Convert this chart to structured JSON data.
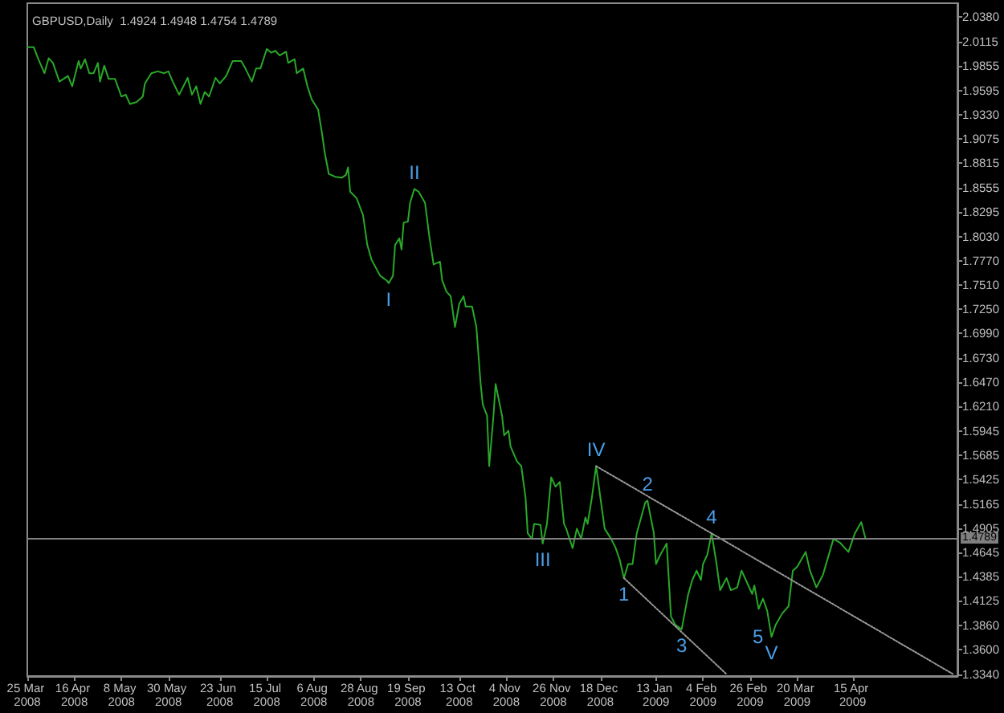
{
  "chart_data": {
    "type": "line",
    "title": "GBPUSD,Daily  1.4924 1.4948 1.4754 1.4789",
    "series": [
      {
        "color": "#29a829",
        "x": [
          "2008-03-25",
          "2008-03-28",
          "2008-03-30",
          "2008-04-02",
          "2008-04-04",
          "2008-04-06",
          "2008-04-09",
          "2008-04-11",
          "2008-04-13",
          "2008-04-15",
          "2008-04-18",
          "2008-04-19",
          "2008-04-21",
          "2008-04-23",
          "2008-04-25",
          "2008-04-27",
          "2008-04-28",
          "2008-04-30",
          "2008-05-02",
          "2008-05-05",
          "2008-05-08",
          "2008-05-10",
          "2008-05-12",
          "2008-05-15",
          "2008-05-18",
          "2008-05-19",
          "2008-05-22",
          "2008-05-25",
          "2008-05-28",
          "2008-05-30",
          "2008-06-01",
          "2008-06-04",
          "2008-06-08",
          "2008-06-10",
          "2008-06-12",
          "2008-06-14",
          "2008-06-16",
          "2008-06-18",
          "2008-06-21",
          "2008-06-23",
          "2008-06-26",
          "2008-06-29",
          "2008-07-03",
          "2008-07-05",
          "2008-07-08",
          "2008-07-10",
          "2008-07-12",
          "2008-07-15",
          "2008-07-17",
          "2008-07-19",
          "2008-07-21",
          "2008-07-24",
          "2008-07-25",
          "2008-07-28",
          "2008-07-29",
          "2008-08-01",
          "2008-08-03",
          "2008-08-05",
          "2008-08-08",
          "2008-08-10",
          "2008-08-11",
          "2008-08-13",
          "2008-08-16",
          "2008-08-19",
          "2008-08-21",
          "2008-08-22",
          "2008-08-23",
          "2008-08-26",
          "2008-08-29",
          "2008-08-31",
          "2008-09-02",
          "2008-09-06",
          "2008-09-09",
          "2008-09-10",
          "2008-09-12",
          "2008-09-13",
          "2008-09-15",
          "2008-09-16",
          "2008-09-17",
          "2008-09-19",
          "2008-09-20",
          "2008-09-22",
          "2008-09-24",
          "2008-09-27",
          "2008-09-29",
          "2008-10-01",
          "2008-10-04",
          "2008-10-05",
          "2008-10-07",
          "2008-10-09",
          "2008-10-11",
          "2008-10-13",
          "2008-10-15",
          "2008-10-16",
          "2008-10-19",
          "2008-10-21",
          "2008-10-23",
          "2008-10-24",
          "2008-10-26",
          "2008-10-27",
          "2008-10-29",
          "2008-10-30",
          "2008-11-02",
          "2008-11-03",
          "2008-11-05",
          "2008-11-06",
          "2008-11-09",
          "2008-11-11",
          "2008-11-13",
          "2008-11-14",
          "2008-11-16",
          "2008-11-17",
          "2008-11-20",
          "2008-11-21",
          "2008-11-23",
          "2008-11-25",
          "2008-11-27",
          "2008-11-29",
          "2008-12-01",
          "2008-12-02",
          "2008-12-05",
          "2008-12-07",
          "2008-12-09",
          "2008-12-11",
          "2008-12-12",
          "2008-12-14",
          "2008-12-16",
          "2008-12-18",
          "2008-12-20",
          "2008-12-23",
          "2008-12-25",
          "2008-12-27",
          "2008-12-29",
          "2008-12-31",
          "2009-01-02",
          "2009-01-04",
          "2009-01-08",
          "2009-01-09",
          "2009-01-12",
          "2009-01-13",
          "2009-01-15",
          "2009-01-18",
          "2009-01-20",
          "2009-01-22",
          "2009-01-25",
          "2009-01-28",
          "2009-01-30",
          "2009-02-01",
          "2009-02-03",
          "2009-02-04",
          "2009-02-06",
          "2009-02-08",
          "2009-02-10",
          "2009-02-12",
          "2009-02-15",
          "2009-02-17",
          "2009-02-20",
          "2009-02-22",
          "2009-02-24",
          "2009-02-27",
          "2009-02-28",
          "2009-03-02",
          "2009-03-04",
          "2009-03-06",
          "2009-03-08",
          "2009-03-10",
          "2009-03-13",
          "2009-03-16",
          "2009-03-18",
          "2009-03-20",
          "2009-03-24",
          "2009-03-26",
          "2009-03-29",
          "2009-04-01",
          "2009-04-06",
          "2009-04-09",
          "2009-04-13",
          "2009-04-16",
          "2009-04-19",
          "2009-04-21"
        ],
        "values": [
          2.006,
          2.006,
          1.994,
          1.978,
          1.994,
          1.989,
          1.969,
          1.972,
          1.975,
          1.964,
          1.991,
          1.983,
          1.993,
          1.978,
          1.978,
          1.989,
          1.969,
          1.986,
          1.972,
          1.972,
          1.953,
          1.955,
          1.945,
          1.947,
          1.953,
          1.967,
          1.978,
          1.98,
          1.978,
          1.98,
          1.969,
          1.955,
          1.973,
          1.955,
          1.964,
          1.945,
          1.958,
          1.953,
          1.973,
          1.967,
          1.975,
          1.991,
          1.991,
          1.983,
          1.969,
          1.983,
          1.983,
          2.004,
          2.0,
          2.002,
          1.997,
          2.001,
          1.989,
          1.993,
          1.978,
          1.983,
          1.964,
          1.95,
          1.939,
          1.911,
          1.894,
          1.87,
          1.867,
          1.866,
          1.869,
          1.877,
          1.851,
          1.844,
          1.826,
          1.794,
          1.778,
          1.761,
          1.756,
          1.753,
          1.761,
          1.794,
          1.801,
          1.789,
          1.818,
          1.819,
          1.839,
          1.854,
          1.851,
          1.839,
          1.803,
          1.773,
          1.776,
          1.756,
          1.744,
          1.739,
          1.706,
          1.731,
          1.739,
          1.728,
          1.728,
          1.706,
          1.645,
          1.623,
          1.611,
          1.557,
          1.611,
          1.645,
          1.611,
          1.59,
          1.595,
          1.578,
          1.562,
          1.557,
          1.523,
          1.485,
          1.479,
          1.495,
          1.494,
          1.474,
          1.495,
          1.545,
          1.535,
          1.54,
          1.495,
          1.49,
          1.469,
          1.49,
          1.479,
          1.502,
          1.495,
          1.523,
          1.557,
          1.523,
          1.49,
          1.479,
          1.47,
          1.457,
          1.437,
          1.452,
          1.452,
          1.485,
          1.518,
          1.52,
          1.485,
          1.452,
          1.462,
          1.474,
          1.396,
          1.387,
          1.382,
          1.419,
          1.435,
          1.445,
          1.435,
          1.452,
          1.462,
          1.485,
          1.457,
          1.424,
          1.437,
          1.424,
          1.427,
          1.445,
          1.435,
          1.42,
          1.429,
          1.404,
          1.415,
          1.402,
          1.374,
          1.387,
          1.399,
          1.407,
          1.445,
          1.449,
          1.465,
          1.445,
          1.427,
          1.44,
          1.479,
          1.475,
          1.465,
          1.485,
          1.497,
          1.479
        ]
      },
      {
        "color": "#9a9a9a",
        "line_style": "dotted",
        "x": [
          "2008-12-16",
          "2009-06-01"
        ],
        "values": [
          1.557,
          1.334
        ]
      },
      {
        "color": "#9a9a9a",
        "line_style": "dotted",
        "x": [
          "2008-12-29",
          "2009-02-15"
        ],
        "values": [
          1.437,
          1.334
        ]
      }
    ],
    "xlim": [
      "2008-03-25",
      "2009-06-03"
    ],
    "xticks": [
      {
        "value": "2008-03-25",
        "label": "25 Mar 2008"
      },
      {
        "value": "2008-04-16",
        "label": "16 Apr 2008"
      },
      {
        "value": "2008-05-08",
        "label": "8 May 2008"
      },
      {
        "value": "2008-05-30",
        "label": "30 May 2008"
      },
      {
        "value": "2008-06-23",
        "label": "23 Jun 2008"
      },
      {
        "value": "2008-07-15",
        "label": "15 Jul 2008"
      },
      {
        "value": "2008-08-06",
        "label": "6 Aug 2008"
      },
      {
        "value": "2008-08-28",
        "label": "28 Aug 2008"
      },
      {
        "value": "2008-09-19",
        "label": "19 Sep 2008"
      },
      {
        "value": "2008-10-13",
        "label": "13 Oct 2008"
      },
      {
        "value": "2008-11-04",
        "label": "4 Nov 2008"
      },
      {
        "value": "2008-11-26",
        "label": "26 Nov 2008"
      },
      {
        "value": "2008-12-18",
        "label": "18 Dec 2008"
      },
      {
        "value": "2009-01-13",
        "label": "13 Jan 2009"
      },
      {
        "value": "2009-02-04",
        "label": "4 Feb 2009"
      },
      {
        "value": "2009-02-26",
        "label": "26 Feb 2009"
      },
      {
        "value": "2009-03-20",
        "label": "20 Mar 2009"
      },
      {
        "value": "2009-04-15",
        "label": "15 Apr 2009"
      }
    ],
    "ylim": [
      1.332,
      2.053
    ],
    "yticks": [
      {
        "value": 2.038,
        "label": "2.0380"
      },
      2.0115,
      1.9855,
      1.9595,
      {
        "value": 1.933,
        "label": "1.9330"
      },
      1.9075,
      1.8815,
      1.8555,
      1.8295,
      {
        "value": 1.803,
        "label": "1.8030"
      },
      {
        "value": 1.777,
        "label": "1.7770"
      },
      {
        "value": 1.751,
        "label": "1.7510"
      },
      {
        "value": 1.725,
        "label": "1.7250"
      },
      {
        "value": 1.699,
        "label": "1.6990"
      },
      {
        "value": 1.673,
        "label": "1.6730"
      },
      {
        "value": 1.647,
        "label": "1.6470"
      },
      {
        "value": 1.621,
        "label": "1.6210"
      },
      1.5945,
      1.5685,
      1.5425,
      1.5165,
      1.4905,
      1.4645,
      1.4385,
      1.4125,
      {
        "value": 1.386,
        "label": "1.3860"
      },
      {
        "value": 1.36,
        "label": "1.3600"
      },
      {
        "value": 1.334,
        "label": "1.3340"
      }
    ],
    "ref_lines": [
      {
        "axis": "y",
        "value": 1.4789,
        "label": "1.4789",
        "color": "#808080"
      }
    ],
    "annotations": [
      {
        "text": "I",
        "x": "2008-09-10",
        "y": 1.753
      },
      {
        "text": "II",
        "x": "2008-09-22",
        "y": 1.854
      },
      {
        "text": "III",
        "x": "2008-11-21",
        "y": 1.474
      },
      {
        "text": "IV",
        "x": "2008-12-16",
        "y": 1.557
      },
      {
        "text": "V",
        "x": "2009-03-08",
        "y": 1.374
      },
      {
        "text": "1",
        "x": "2008-12-29",
        "y": 1.437
      },
      {
        "text": "2",
        "x": "2009-01-09",
        "y": 1.52
      },
      {
        "text": "3",
        "x": "2009-01-25",
        "y": 1.382
      },
      {
        "text": "4",
        "x": "2009-02-08",
        "y": 1.485
      },
      {
        "text": "5",
        "x": "2009-03-08",
        "y": 1.374
      }
    ]
  }
}
